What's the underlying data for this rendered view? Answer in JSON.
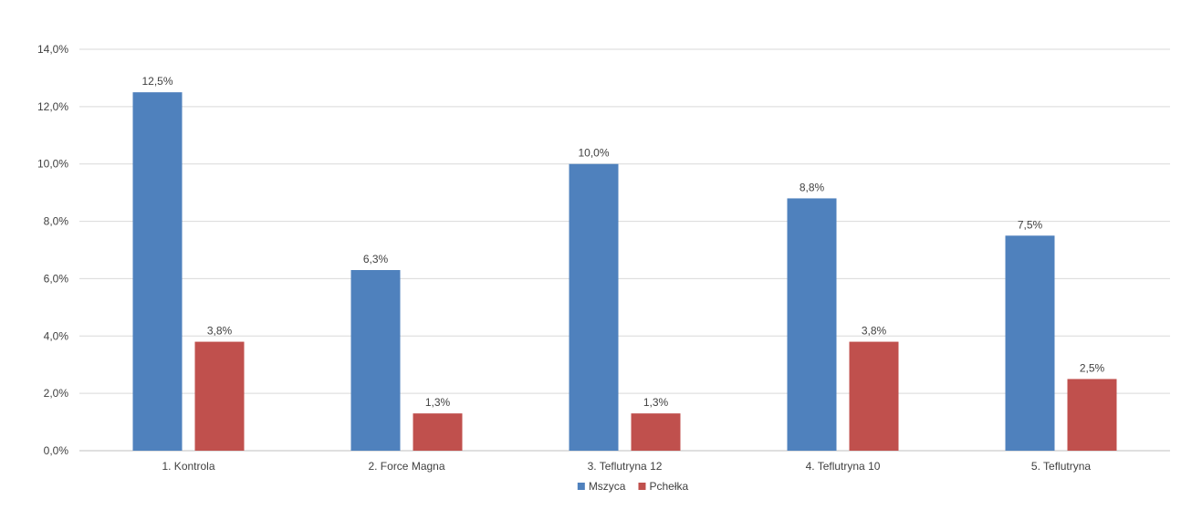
{
  "chart_data": {
    "type": "bar",
    "title": "",
    "xlabel": "",
    "ylabel": "",
    "categories": [
      "1.  Kontrola",
      "2. Force Magna",
      "3. Teflutryna 12",
      "4. Teflutryna 10",
      "5. Teflutryna"
    ],
    "series": [
      {
        "name": "Mszyca",
        "color": "#4F81BD",
        "values": [
          12.5,
          6.3,
          10.0,
          8.8,
          7.5
        ],
        "labels": [
          "12,5%",
          "6,3%",
          "10,0%",
          "8,8%",
          "7,5%"
        ]
      },
      {
        "name": "Pchełka",
        "color": "#C0504D",
        "values": [
          3.8,
          1.3,
          1.3,
          3.8,
          2.5
        ],
        "labels": [
          "3,8%",
          "1,3%",
          "1,3%",
          "3,8%",
          "2,5%"
        ]
      }
    ],
    "ylim": [
      0,
      14
    ],
    "yticks": [
      0,
      2,
      4,
      6,
      8,
      10,
      12,
      14
    ],
    "ytick_labels": [
      "0,0%",
      "2,0%",
      "4,0%",
      "6,0%",
      "8,0%",
      "10,0%",
      "12,0%",
      "14,0%"
    ],
    "grid": true,
    "legend_position": "bottom"
  }
}
